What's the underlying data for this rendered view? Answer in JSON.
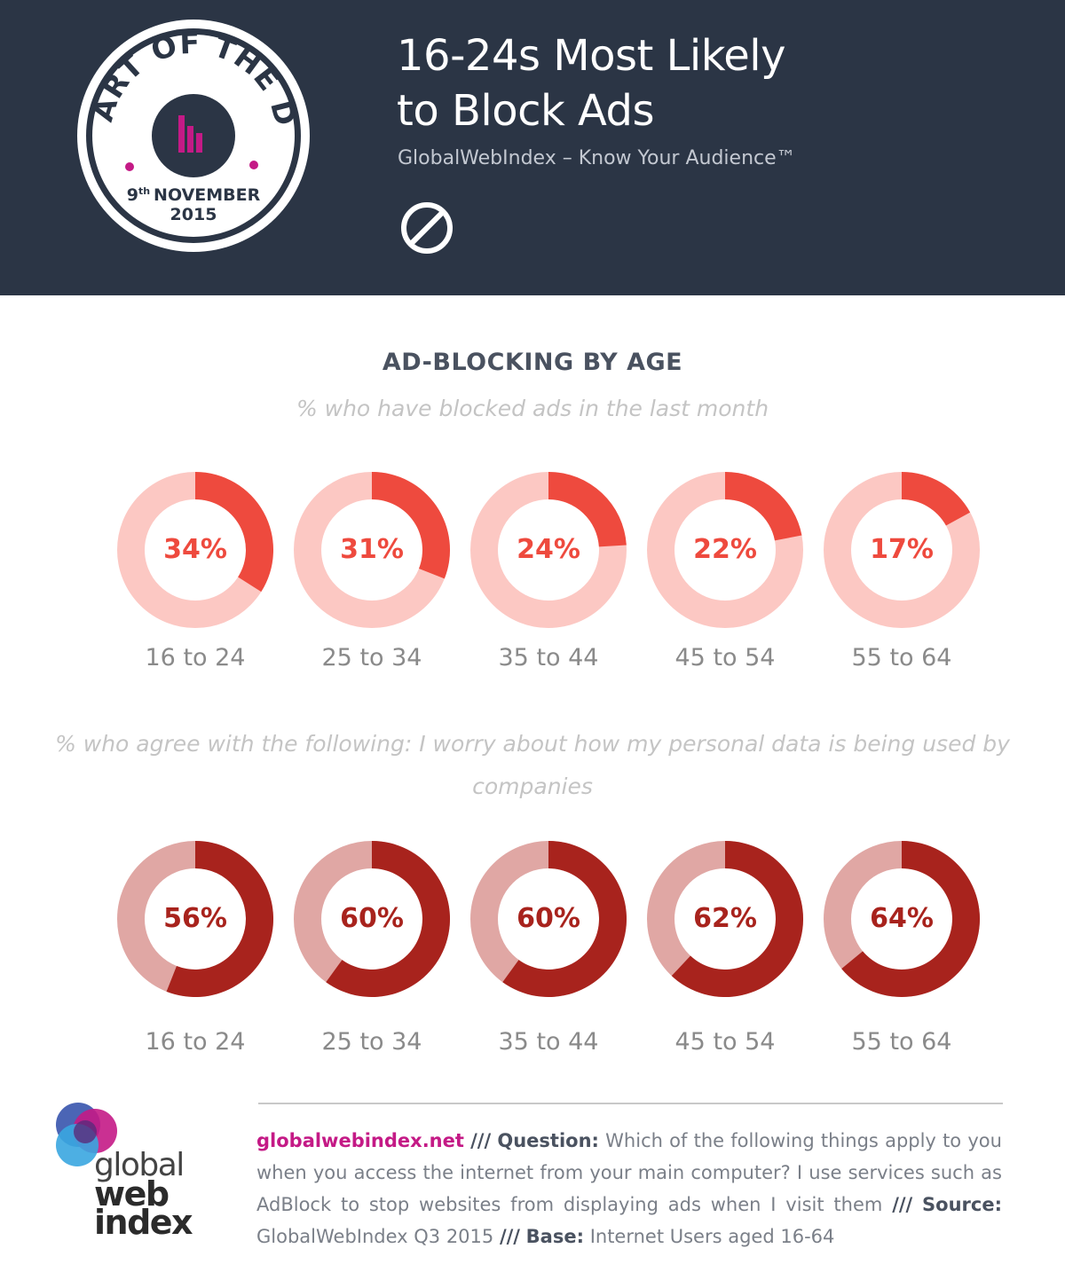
{
  "badge": {
    "arc_text": "CHART OF THE DAY",
    "date_line1_day": "9",
    "date_line1_suffix": "th",
    "date_line1_month": "NOVEMBER",
    "date_line2": "2015"
  },
  "header": {
    "title_line1": "16-24s Most Likely",
    "title_line2": "to Block Ads",
    "tagline": "GlobalWebIndex – Know Your Audience™"
  },
  "section_title": "AD-BLOCKING BY AGE",
  "colors": {
    "header_bg": "#2b3545",
    "magenta": "#c41a86",
    "red_fill": "#ee4a3e",
    "red_track": "#fcc8c3",
    "dark_fill": "#a8231d",
    "dark_track": "#e0a7a4"
  },
  "chart_data": [
    {
      "type": "pie",
      "subtitle": "% who have blocked ads in the last month",
      "categories": [
        "16 to 24",
        "25 to 34",
        "35 to 44",
        "45 to 54",
        "55 to 64"
      ],
      "values": [
        34,
        31,
        24,
        22,
        17
      ],
      "labels": [
        "34%",
        "31%",
        "24%",
        "22%",
        "17%"
      ]
    },
    {
      "type": "pie",
      "subtitle": "% who agree with the following: I worry about how my personal data is being used by companies",
      "categories": [
        "16 to 24",
        "25 to 34",
        "35 to 44",
        "45 to 54",
        "55 to 64"
      ],
      "values": [
        56,
        60,
        60,
        62,
        64
      ],
      "labels": [
        "56%",
        "60%",
        "60%",
        "62%",
        "64%"
      ]
    }
  ],
  "footer": {
    "link": "globalwebindex.net",
    "sep": "///",
    "question_label": "Question:",
    "question_text": "Which of the following things apply to you when you access the internet from your main computer? I use services such as AdBlock to stop websites from displaying ads when I visit them",
    "source_label": "Source:",
    "source_text": "GlobalWebIndex Q3 2015",
    "base_label": "Base:",
    "base_text": "Internet Users aged 16-64"
  },
  "logo": {
    "line1": "global",
    "line2": "web",
    "line3": "index"
  }
}
